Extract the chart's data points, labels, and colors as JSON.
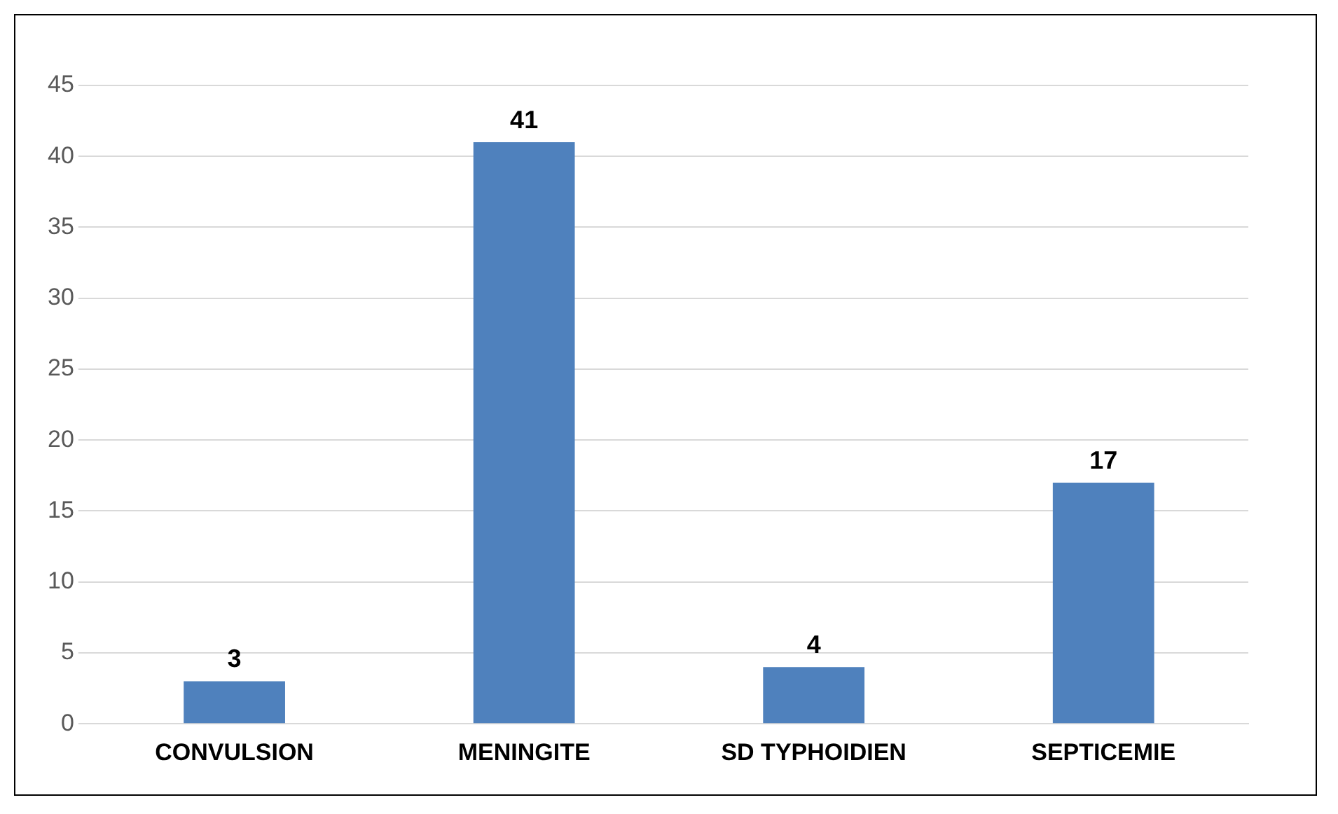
{
  "chart_data": {
    "type": "bar",
    "categories": [
      "CONVULSION",
      "MENINGITE",
      "SD TYPHOIDIEN",
      "SEPTICEMIE"
    ],
    "values": [
      3,
      41,
      4,
      17
    ],
    "color": "#4f81bd",
    "ylim": [
      0,
      45
    ],
    "yticks": [
      0,
      5,
      10,
      15,
      20,
      25,
      30,
      35,
      40,
      45
    ],
    "grid": "y",
    "legend": false,
    "data_labels": true
  }
}
